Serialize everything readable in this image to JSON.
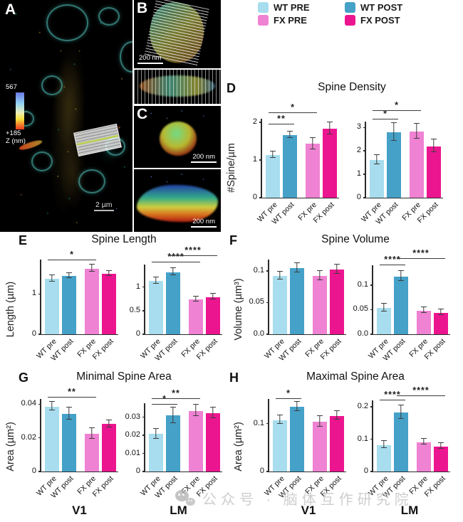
{
  "legend": {
    "items": [
      {
        "label": "WT PRE",
        "color": "#a7ddee"
      },
      {
        "label": "WT POST",
        "color": "#45a1c8"
      },
      {
        "label": "FX PRE",
        "color": "#ef82d2"
      },
      {
        "label": "FX POST",
        "color": "#ec1590"
      }
    ]
  },
  "categories": [
    "WT pre",
    "WT post",
    "FX pre",
    "FX post"
  ],
  "microscopy": {
    "panel_a": {
      "letter": "A",
      "colorbar_top": "567",
      "colorbar_bottom": "+185",
      "colorbar_unit": "Z (nm)",
      "scale_bar": "2 µm"
    },
    "panel_b": {
      "letter": "B",
      "scale_bar": "200 nm"
    },
    "panel_c": {
      "letter": "C",
      "scale_bar_top": "200 nm",
      "scale_bar_bottom": "200 nm"
    }
  },
  "watermark": {
    "text": "公众号 · 脑体互作研究院"
  },
  "chart_data": [
    {
      "panel": "D",
      "type": "bar",
      "title": "Spine Density",
      "ylabel": "#Spine/µm",
      "categories": [
        "WT pre",
        "WT post",
        "FX pre",
        "FX post"
      ],
      "subplots": [
        {
          "region": "V1",
          "ymax": 2.45,
          "axis_top": 2.1,
          "ticks": [
            {
              "v": 0,
              "label": "0"
            },
            {
              "v": 1,
              "label": "1"
            },
            {
              "v": 2,
              "label": "2"
            }
          ],
          "values": [
            1.13,
            1.66,
            1.43,
            1.83
          ],
          "errors": [
            0.07,
            0.08,
            0.14,
            0.15
          ],
          "sig": [
            {
              "from": 0,
              "to": 1,
              "y": 1.95,
              "label": "**"
            },
            {
              "from": 0,
              "to": 2,
              "y": 2.25,
              "label": "*"
            }
          ]
        },
        {
          "region": "LM",
          "ymax": 3.95,
          "axis_top": 3.25,
          "ticks": [
            {
              "v": 0,
              "label": "0"
            },
            {
              "v": 1,
              "label": "1"
            },
            {
              "v": 2,
              "label": "2"
            },
            {
              "v": 3,
              "label": "3"
            }
          ],
          "values": [
            1.62,
            2.8,
            2.82,
            2.2
          ],
          "errors": [
            0.18,
            0.36,
            0.3,
            0.27
          ],
          "sig": [
            {
              "from": 0,
              "to": 1,
              "y": 3.35,
              "label": "*"
            },
            {
              "from": 0,
              "to": 2,
              "y": 3.7,
              "label": "*"
            }
          ]
        }
      ]
    },
    {
      "panel": "E",
      "type": "bar",
      "title": "Spine Length",
      "ylabel": "Length (µm)",
      "categories": [
        "WT pre",
        "WT post",
        "FX pre",
        "FX post"
      ],
      "subplots": [
        {
          "region": "V1",
          "ymax": 2.05,
          "axis_top": 1.85,
          "ticks": [
            {
              "v": 0,
              "label": "0"
            },
            {
              "v": 1,
              "label": "1"
            }
          ],
          "values": [
            1.38,
            1.45,
            1.63,
            1.5
          ],
          "errors": [
            0.07,
            0.06,
            0.08,
            0.05
          ],
          "sig": [
            {
              "from": 0,
              "to": 2,
              "y": 1.84,
              "label": "*"
            }
          ]
        },
        {
          "region": "LM",
          "ymax": 1.75,
          "axis_top": 1.48,
          "ticks": [
            {
              "v": 0,
              "label": "0"
            },
            {
              "v": 0.5,
              "label": "0.5"
            },
            {
              "v": 1,
              "label": "1"
            }
          ],
          "values": [
            1.13,
            1.32,
            0.74,
            0.79
          ],
          "errors": [
            0.06,
            0.07,
            0.05,
            0.05
          ],
          "sig": [
            {
              "from": 0,
              "to": 2,
              "y": 1.52,
              "label": "****"
            },
            {
              "from": 1,
              "to": 3,
              "y": 1.66,
              "label": "****"
            }
          ]
        }
      ]
    },
    {
      "panel": "F",
      "type": "bar",
      "title": "Spine Volume",
      "ylabel": "Volume (µm³)",
      "categories": [
        "WT pre",
        "WT post",
        "FX pre",
        "FX post"
      ],
      "subplots": [
        {
          "region": "V1",
          "ymax": 0.13,
          "axis_top": 0.118,
          "ticks": [
            {
              "v": 0,
              "label": "0.0"
            },
            {
              "v": 0.05,
              "label": "0.05"
            },
            {
              "v": 0.1,
              "label": "0.1"
            }
          ],
          "values": [
            0.092,
            0.104,
            0.092,
            0.102
          ],
          "errors": [
            0.006,
            0.007,
            0.007,
            0.007
          ],
          "sig": []
        },
        {
          "region": "LM",
          "ymax": 0.168,
          "axis_top": 0.141,
          "ticks": [
            {
              "v": 0,
              "label": "0.0"
            },
            {
              "v": 0.05,
              "label": "0.05"
            },
            {
              "v": 0.1,
              "label": "0.1"
            }
          ],
          "values": [
            0.054,
            0.118,
            0.048,
            0.044
          ],
          "errors": [
            0.007,
            0.01,
            0.005,
            0.005
          ],
          "sig": [
            {
              "from": 0,
              "to": 1,
              "y": 0.14,
              "label": "****"
            },
            {
              "from": 1,
              "to": 3,
              "y": 0.154,
              "label": "****"
            }
          ]
        }
      ]
    },
    {
      "panel": "G",
      "type": "bar",
      "title": "Minimal Spine Area",
      "ylabel": "Area (µm²)",
      "categories": [
        "WT pre",
        "WT post",
        "FX pre",
        "FX post"
      ],
      "region_labels": [
        "V1",
        "LM"
      ],
      "subplots": [
        {
          "region": "V1",
          "ymax": 0.049,
          "axis_top": 0.043,
          "ticks": [
            {
              "v": 0,
              "label": "0"
            },
            {
              "v": 0.02,
              "label": "0.02"
            },
            {
              "v": 0.04,
              "label": "0.04"
            }
          ],
          "values": [
            0.0386,
            0.0342,
            0.0223,
            0.0281
          ],
          "errors": [
            0.0023,
            0.0035,
            0.003,
            0.002
          ],
          "sig": [
            {
              "from": 0,
              "to": 2,
              "y": 0.044,
              "label": "**"
            }
          ]
        },
        {
          "region": "LM",
          "ymax": 0.0455,
          "axis_top": 0.0375,
          "ticks": [
            {
              "v": 0,
              "label": "0"
            },
            {
              "v": 0.01,
              "label": "0.01"
            },
            {
              "v": 0.02,
              "label": "0.02"
            },
            {
              "v": 0.03,
              "label": "0.03"
            }
          ],
          "values": [
            0.0207,
            0.0308,
            0.0335,
            0.0323
          ],
          "errors": [
            0.0025,
            0.004,
            0.003,
            0.0028
          ],
          "sig": [
            {
              "from": 0,
              "to": 1,
              "y": 0.0368,
              "label": "*"
            },
            {
              "from": 0,
              "to": 2,
              "y": 0.0402,
              "label": "**"
            }
          ]
        }
      ]
    },
    {
      "panel": "H",
      "type": "bar",
      "title": "Maximal Spine Area",
      "ylabel": "Area (µm²)",
      "categories": [
        "WT pre",
        "WT post",
        "FX pre",
        "FX post"
      ],
      "region_labels": [
        "V1",
        "LM"
      ],
      "subplots": [
        {
          "region": "V1",
          "ymax": 0.172,
          "axis_top": 0.151,
          "ticks": [
            {
              "v": 0,
              "label": "0"
            },
            {
              "v": 0.1,
              "label": "0.1"
            }
          ],
          "values": [
            0.107,
            0.135,
            0.104,
            0.116
          ],
          "errors": [
            0.008,
            0.009,
            0.01,
            0.008
          ],
          "sig": [
            {
              "from": 0,
              "to": 1,
              "y": 0.152,
              "label": "*"
            }
          ]
        },
        {
          "region": "LM",
          "ymax": 0.255,
          "axis_top": 0.219,
          "ticks": [
            {
              "v": 0,
              "label": "0"
            },
            {
              "v": 0.1,
              "label": "0.1"
            },
            {
              "v": 0.2,
              "label": "0.2"
            }
          ],
          "values": [
            0.082,
            0.183,
            0.091,
            0.078
          ],
          "errors": [
            0.01,
            0.02,
            0.008,
            0.008
          ],
          "sig": [
            {
              "from": 0,
              "to": 1,
              "y": 0.22,
              "label": "****"
            },
            {
              "from": 1,
              "to": 3,
              "y": 0.234,
              "label": "****"
            }
          ]
        }
      ]
    }
  ]
}
